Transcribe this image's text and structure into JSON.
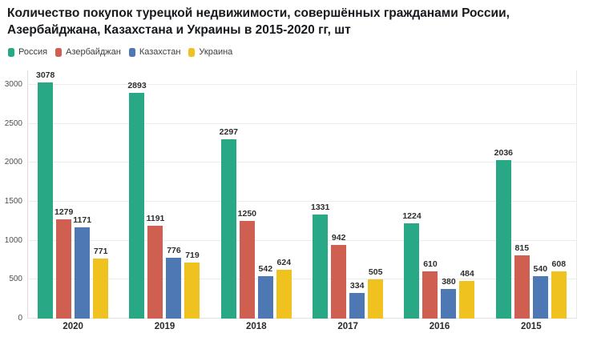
{
  "title": {
    "line1": "Количество покупок турецкой недвижимости, совершённых гражданами России,",
    "line2": "Азербайджана, Казахстана и Украины в 2015-2020 гг, шт"
  },
  "chart_data": {
    "type": "bar",
    "title": "Количество покупок турецкой недвижимости, совершённых гражданами России, Азербайджана, Казахстана и Украины в 2015-2020 гг, шт",
    "categories": [
      "2020",
      "2019",
      "2018",
      "2017",
      "2016",
      "2015"
    ],
    "series": [
      {
        "name": "Россия",
        "color": "#29a885",
        "values": [
          3078,
          2893,
          2297,
          1331,
          1224,
          2036
        ]
      },
      {
        "name": "Азербайджан",
        "color": "#cf5f50",
        "values": [
          1279,
          1191,
          1250,
          942,
          610,
          815
        ]
      },
      {
        "name": "Казахстан",
        "color": "#4d78b4",
        "values": [
          1171,
          776,
          542,
          334,
          380,
          540
        ]
      },
      {
        "name": "Украина",
        "color": "#f0c21f",
        "values": [
          771,
          719,
          624,
          505,
          484,
          608
        ]
      }
    ],
    "xlabel": "",
    "ylabel": "",
    "ylim": [
      0,
      3100
    ],
    "yticks": [
      0,
      500,
      1000,
      1500,
      2000,
      2500,
      3000
    ],
    "grid": "horizontal",
    "legend_position": "top-left",
    "value_labels": true
  }
}
